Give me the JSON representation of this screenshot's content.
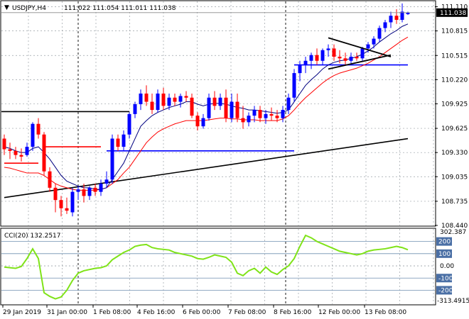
{
  "header": {
    "symbol_label": "USDJPY,H4",
    "ohlc_label": "111.022 111.054 111.011 111.038"
  },
  "cci_header": {
    "label": "CCI(20) 132.2517"
  },
  "chart_data": [
    {
      "type": "candlestick",
      "symbol": "USDJPY",
      "timeframe": "H4",
      "ylim": [
        108.44,
        111.175
      ],
      "y_ticks": [
        "111.110",
        "110.815",
        "110.515",
        "110.220",
        "109.925",
        "109.625",
        "109.330",
        "109.035",
        "108.735",
        "108.440"
      ],
      "current_price": "111.038",
      "x_tick_labels": [
        "29 Jan 2019",
        "31 Jan 00:00",
        "1 Feb 08:00",
        "4 Feb 16:00",
        "6 Feb 00:00",
        "7 Feb 08:00",
        "8 Feb 16:00",
        "12 Feb 00:00",
        "13 Feb 08:00"
      ],
      "colors": {
        "up": "#0000ff",
        "down": "#ff0000",
        "line": "#000000",
        "ma_fast": "#000080",
        "ma_slow": "#ff0000",
        "stop": "#0000ff",
        "stop_down": "#ff0000"
      },
      "candles": [
        {
          "o": 109.5,
          "h": 109.55,
          "l": 109.3,
          "c": 109.37
        },
        {
          "o": 109.37,
          "h": 109.45,
          "l": 109.25,
          "c": 109.35
        },
        {
          "o": 109.35,
          "h": 109.4,
          "l": 109.25,
          "c": 109.3
        },
        {
          "o": 109.3,
          "h": 109.38,
          "l": 109.22,
          "c": 109.28
        },
        {
          "o": 109.3,
          "h": 109.45,
          "l": 109.28,
          "c": 109.4
        },
        {
          "o": 109.4,
          "h": 109.7,
          "l": 109.35,
          "c": 109.68
        },
        {
          "o": 109.68,
          "h": 109.75,
          "l": 109.5,
          "c": 109.55
        },
        {
          "o": 109.55,
          "h": 109.58,
          "l": 109.05,
          "c": 109.1
        },
        {
          "o": 109.1,
          "h": 109.15,
          "l": 108.85,
          "c": 108.9
        },
        {
          "o": 108.9,
          "h": 108.95,
          "l": 108.6,
          "c": 108.75
        },
        {
          "o": 108.75,
          "h": 108.8,
          "l": 108.55,
          "c": 108.65
        },
        {
          "o": 108.65,
          "h": 108.78,
          "l": 108.58,
          "c": 108.62
        },
        {
          "o": 108.6,
          "h": 108.9,
          "l": 108.55,
          "c": 108.85
        },
        {
          "o": 108.85,
          "h": 108.92,
          "l": 108.75,
          "c": 108.88
        },
        {
          "o": 108.88,
          "h": 108.95,
          "l": 108.72,
          "c": 108.8
        },
        {
          "o": 108.8,
          "h": 108.92,
          "l": 108.75,
          "c": 108.9
        },
        {
          "o": 108.9,
          "h": 108.95,
          "l": 108.8,
          "c": 108.85
        },
        {
          "o": 108.85,
          "h": 109.0,
          "l": 108.8,
          "c": 108.95
        },
        {
          "o": 108.95,
          "h": 109.1,
          "l": 108.9,
          "c": 109.0
        },
        {
          "o": 109.0,
          "h": 109.55,
          "l": 108.95,
          "c": 109.5
        },
        {
          "o": 109.5,
          "h": 109.55,
          "l": 109.35,
          "c": 109.4
        },
        {
          "o": 109.4,
          "h": 109.6,
          "l": 109.35,
          "c": 109.55
        },
        {
          "o": 109.55,
          "h": 109.82,
          "l": 109.5,
          "c": 109.8
        },
        {
          "o": 109.8,
          "h": 109.95,
          "l": 109.75,
          "c": 109.92
        },
        {
          "o": 109.92,
          "h": 110.1,
          "l": 109.85,
          "c": 110.05
        },
        {
          "o": 110.05,
          "h": 110.15,
          "l": 109.9,
          "c": 109.95
        },
        {
          "o": 109.95,
          "h": 110.05,
          "l": 109.8,
          "c": 109.85
        },
        {
          "o": 109.85,
          "h": 110.1,
          "l": 109.82,
          "c": 110.05
        },
        {
          "o": 110.05,
          "h": 110.12,
          "l": 109.85,
          "c": 109.9
        },
        {
          "o": 109.9,
          "h": 110.05,
          "l": 109.85,
          "c": 110.0
        },
        {
          "o": 110.0,
          "h": 110.05,
          "l": 109.9,
          "c": 109.95
        },
        {
          "o": 109.95,
          "h": 110.05,
          "l": 109.88,
          "c": 110.02
        },
        {
          "o": 110.02,
          "h": 110.08,
          "l": 109.95,
          "c": 110.0
        },
        {
          "o": 110.0,
          "h": 110.05,
          "l": 109.75,
          "c": 109.78
        },
        {
          "o": 109.78,
          "h": 109.82,
          "l": 109.6,
          "c": 109.65
        },
        {
          "o": 109.65,
          "h": 109.8,
          "l": 109.62,
          "c": 109.75
        },
        {
          "o": 109.75,
          "h": 110.05,
          "l": 109.72,
          "c": 110.0
        },
        {
          "o": 110.0,
          "h": 110.08,
          "l": 109.85,
          "c": 109.9
        },
        {
          "o": 109.9,
          "h": 110.05,
          "l": 109.85,
          "c": 110.0
        },
        {
          "o": 110.0,
          "h": 110.1,
          "l": 109.7,
          "c": 109.75
        },
        {
          "o": 109.75,
          "h": 110.05,
          "l": 109.7,
          "c": 109.95
        },
        {
          "o": 109.95,
          "h": 110.05,
          "l": 109.7,
          "c": 109.75
        },
        {
          "o": 109.75,
          "h": 109.9,
          "l": 109.62,
          "c": 109.7
        },
        {
          "o": 109.7,
          "h": 109.82,
          "l": 109.65,
          "c": 109.78
        },
        {
          "o": 109.78,
          "h": 109.9,
          "l": 109.7,
          "c": 109.85
        },
        {
          "o": 109.85,
          "h": 109.9,
          "l": 109.7,
          "c": 109.75
        },
        {
          "o": 109.75,
          "h": 109.85,
          "l": 109.68,
          "c": 109.8
        },
        {
          "o": 109.8,
          "h": 109.88,
          "l": 109.72,
          "c": 109.78
        },
        {
          "o": 109.78,
          "h": 109.85,
          "l": 109.7,
          "c": 109.75
        },
        {
          "o": 109.75,
          "h": 109.9,
          "l": 109.7,
          "c": 109.85
        },
        {
          "o": 109.85,
          "h": 110.05,
          "l": 109.8,
          "c": 110.0
        },
        {
          "o": 110.0,
          "h": 110.35,
          "l": 109.95,
          "c": 110.3
        },
        {
          "o": 110.3,
          "h": 110.45,
          "l": 110.2,
          "c": 110.4
        },
        {
          "o": 110.4,
          "h": 110.5,
          "l": 110.3,
          "c": 110.45
        },
        {
          "o": 110.45,
          "h": 110.55,
          "l": 110.35,
          "c": 110.52
        },
        {
          "o": 110.52,
          "h": 110.6,
          "l": 110.4,
          "c": 110.45
        },
        {
          "o": 110.45,
          "h": 110.6,
          "l": 110.4,
          "c": 110.58
        },
        {
          "o": 110.58,
          "h": 110.65,
          "l": 110.5,
          "c": 110.6
        },
        {
          "o": 110.6,
          "h": 110.65,
          "l": 110.45,
          "c": 110.5
        },
        {
          "o": 110.5,
          "h": 110.58,
          "l": 110.42,
          "c": 110.48
        },
        {
          "o": 110.48,
          "h": 110.55,
          "l": 110.4,
          "c": 110.45
        },
        {
          "o": 110.45,
          "h": 110.55,
          "l": 110.42,
          "c": 110.5
        },
        {
          "o": 110.5,
          "h": 110.55,
          "l": 110.45,
          "c": 110.48
        },
        {
          "o": 110.48,
          "h": 110.62,
          "l": 110.45,
          "c": 110.6
        },
        {
          "o": 110.6,
          "h": 110.68,
          "l": 110.55,
          "c": 110.65
        },
        {
          "o": 110.65,
          "h": 110.75,
          "l": 110.6,
          "c": 110.72
        },
        {
          "o": 110.72,
          "h": 110.88,
          "l": 110.68,
          "c": 110.85
        },
        {
          "o": 110.85,
          "h": 110.95,
          "l": 110.8,
          "c": 110.92
        },
        {
          "o": 110.92,
          "h": 111.05,
          "l": 110.85,
          "c": 111.0
        },
        {
          "o": 111.0,
          "h": 111.08,
          "l": 110.9,
          "c": 110.95
        },
        {
          "o": 110.95,
          "h": 111.15,
          "l": 110.92,
          "c": 111.05
        },
        {
          "o": 111.02,
          "h": 111.05,
          "l": 111.01,
          "c": 111.04
        }
      ],
      "ma_fast": [
        109.4,
        109.38,
        109.35,
        109.33,
        109.33,
        109.38,
        109.4,
        109.33,
        109.25,
        109.15,
        109.05,
        108.98,
        108.95,
        108.92,
        108.9,
        108.9,
        108.88,
        108.88,
        108.9,
        109.0,
        109.1,
        109.2,
        109.35,
        109.5,
        109.65,
        109.72,
        109.78,
        109.82,
        109.85,
        109.88,
        109.9,
        109.92,
        109.95,
        109.95,
        109.92,
        109.9,
        109.92,
        109.93,
        109.93,
        109.92,
        109.9,
        109.88,
        109.87,
        109.85,
        109.85,
        109.84,
        109.83,
        109.82,
        109.81,
        109.82,
        109.85,
        109.95,
        110.05,
        110.15,
        110.22,
        110.28,
        110.35,
        110.4,
        110.43,
        110.45,
        110.46,
        110.48,
        110.5,
        110.53,
        110.57,
        110.62,
        110.68,
        110.73,
        110.78,
        110.82,
        110.87,
        110.9
      ],
      "ma_slow": [
        109.15,
        109.14,
        109.12,
        109.1,
        109.08,
        109.08,
        109.08,
        109.05,
        109.0,
        108.95,
        108.92,
        108.9,
        108.88,
        108.87,
        108.87,
        108.87,
        108.87,
        108.88,
        108.9,
        108.95,
        109.0,
        109.08,
        109.15,
        109.25,
        109.35,
        109.45,
        109.52,
        109.58,
        109.62,
        109.65,
        109.68,
        109.7,
        109.72,
        109.72,
        109.72,
        109.72,
        109.73,
        109.74,
        109.75,
        109.75,
        109.74,
        109.74,
        109.73,
        109.73,
        109.73,
        109.72,
        109.72,
        109.72,
        109.72,
        109.74,
        109.78,
        109.85,
        109.93,
        110.0,
        110.06,
        110.12,
        110.18,
        110.23,
        110.27,
        110.3,
        110.32,
        110.34,
        110.36,
        110.39,
        110.42,
        110.46,
        110.5,
        110.55,
        110.6,
        110.65,
        110.7,
        110.74
      ],
      "horizontal_line": 109.83,
      "trendline": [
        [
          0,
          108.78
        ],
        [
          71,
          109.5
        ]
      ],
      "triangle": {
        "upper": [
          [
            57,
            110.73
          ],
          [
            68,
            110.5
          ]
        ],
        "lower": [
          [
            57,
            110.35
          ],
          [
            68,
            110.52
          ]
        ]
      },
      "stop_levels": [
        {
          "from": 0,
          "to": 6,
          "value": 109.2,
          "dir": "down"
        },
        {
          "from": 7,
          "to": 17,
          "value": 109.4,
          "dir": "down"
        },
        {
          "from": 18,
          "to": 51,
          "value": 109.35,
          "dir": "up"
        },
        {
          "from": 51,
          "to": 71,
          "value": 110.4,
          "dir": "up"
        }
      ]
    },
    {
      "type": "line",
      "title": "CCI(20) 132.2517",
      "ylim": [
        -313.4915,
        302.387
      ],
      "axis_top_label": "302.387",
      "axis_bottom_label": "-313.4915",
      "levels": [
        "200",
        "100",
        "0.00",
        "-100",
        "-200"
      ],
      "level_values": [
        200,
        100,
        0,
        -100,
        -200
      ],
      "series_color": "#7fe318",
      "values": [
        -10,
        -15,
        -20,
        -5,
        60,
        140,
        60,
        -220,
        -250,
        -270,
        -255,
        -200,
        -120,
        -60,
        -40,
        -30,
        -20,
        -15,
        0,
        50,
        80,
        110,
        130,
        160,
        170,
        175,
        150,
        140,
        135,
        130,
        110,
        100,
        90,
        80,
        60,
        55,
        70,
        90,
        80,
        70,
        30,
        -60,
        -80,
        -40,
        -20,
        -60,
        -10,
        -50,
        -70,
        -30,
        0,
        60,
        160,
        250,
        230,
        200,
        180,
        160,
        140,
        120,
        110,
        100,
        90,
        100,
        120,
        130,
        135,
        140,
        150,
        160,
        150,
        132
      ]
    }
  ]
}
